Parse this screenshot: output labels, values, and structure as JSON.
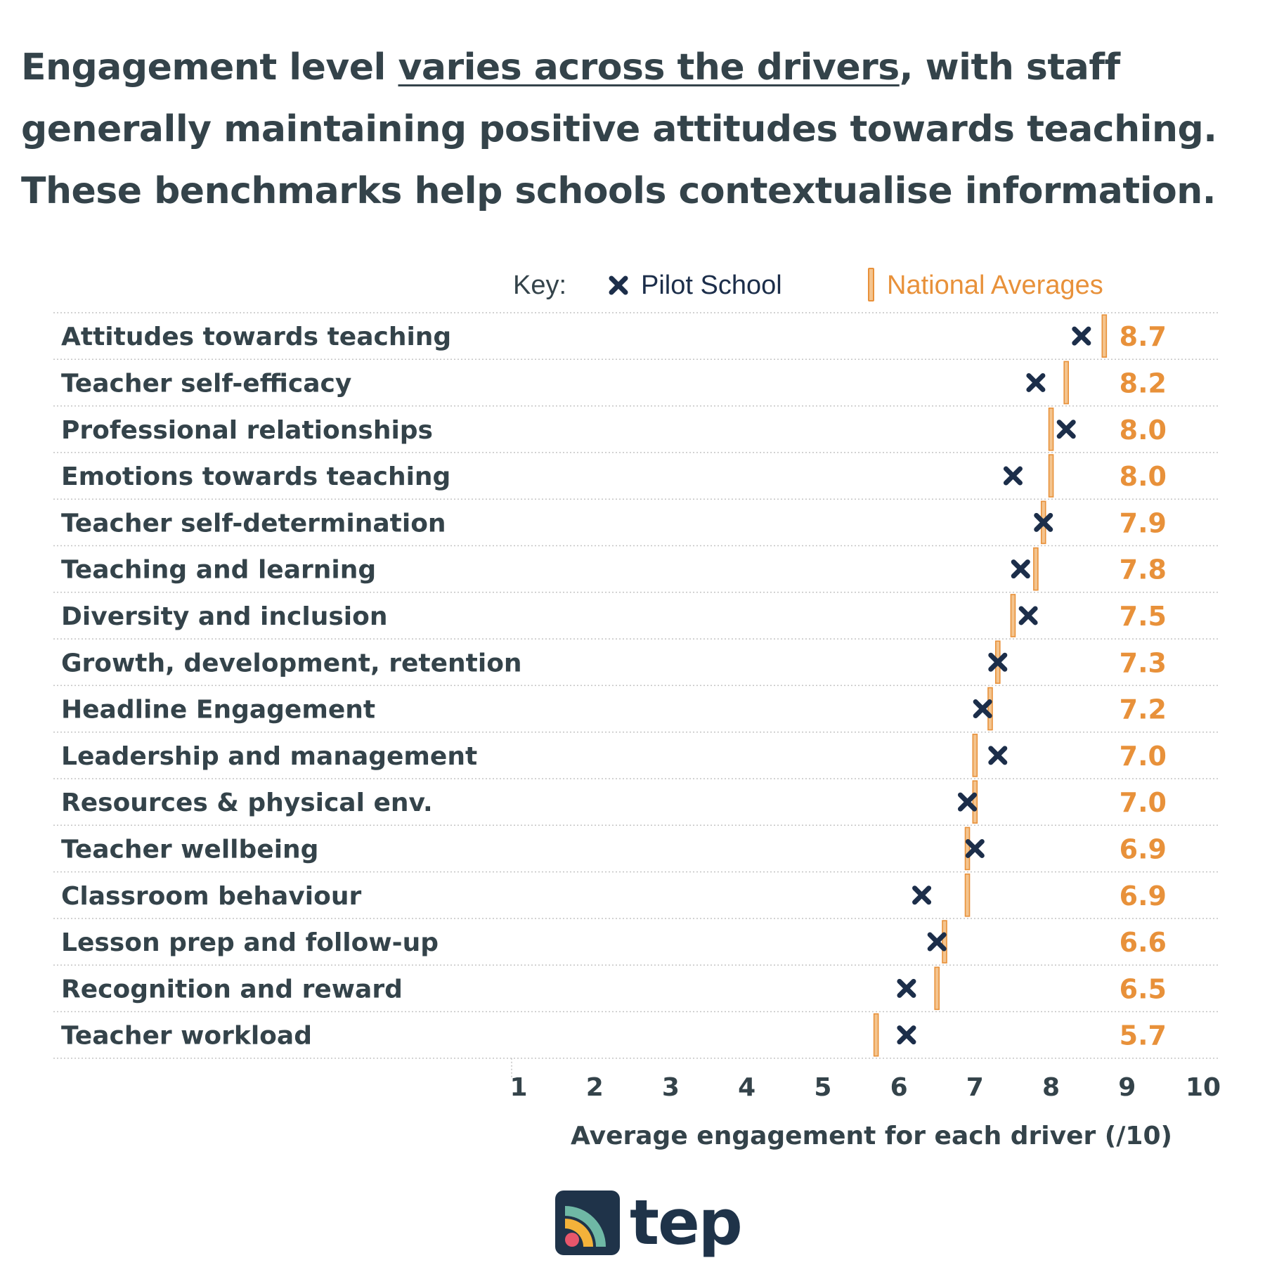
{
  "headline": {
    "part1": "Engagement level ",
    "underlined": "varies across the drivers",
    "part2": ", with staff generally maintaining positive attitudes towards teaching. These benchmarks help schools contextualise information."
  },
  "key": {
    "label": "Key:",
    "pilot": "Pilot School",
    "national": "National Averages"
  },
  "brand": {
    "name": "tep"
  },
  "colors": {
    "pilot": "#1c2e4a",
    "national": "#e8913a",
    "national_fill": "#f4c48e",
    "text": "#34434a",
    "grid": "#c4c4c4"
  },
  "chart_data": {
    "type": "scatter",
    "title": "",
    "xlabel": "Average engagement for each driver (/10)",
    "ylabel": "",
    "xlim": [
      1,
      10
    ],
    "xticks": [
      "1",
      "2",
      "3",
      "4",
      "5",
      "6",
      "7",
      "8",
      "9",
      "10"
    ],
    "legend": "top",
    "grid": "dotted horizontal row separators",
    "categories": [
      "Attitudes towards teaching",
      "Teacher self-efficacy",
      "Professional relationships",
      "Emotions towards teaching",
      "Teacher self-determination",
      "Teaching and learning",
      "Diversity and inclusion",
      "Growth, development, retention",
      "Headline Engagement",
      "Leadership and management",
      "Resources & physical env.",
      "Teacher wellbeing",
      "Classroom behaviour",
      "Lesson prep and follow-up",
      "Recognition and reward",
      "Teacher workload"
    ],
    "series": [
      {
        "name": "Pilot School",
        "marker": "x",
        "values": [
          8.4,
          7.8,
          8.2,
          7.5,
          7.9,
          7.6,
          7.7,
          7.3,
          7.1,
          7.3,
          6.9,
          7.0,
          6.3,
          6.5,
          6.1,
          6.1
        ]
      },
      {
        "name": "National Averages",
        "marker": "vertical-bar",
        "values": [
          8.7,
          8.2,
          8.0,
          8.0,
          7.9,
          7.8,
          7.5,
          7.3,
          7.2,
          7.0,
          7.0,
          6.9,
          6.9,
          6.6,
          6.5,
          5.7
        ],
        "labels": [
          "8.7",
          "8.2",
          "8.0",
          "8.0",
          "7.9",
          "7.8",
          "7.5",
          "7.3",
          "7.2",
          "7.0",
          "7.0",
          "6.9",
          "6.9",
          "6.6",
          "6.5",
          "5.7"
        ]
      }
    ]
  }
}
